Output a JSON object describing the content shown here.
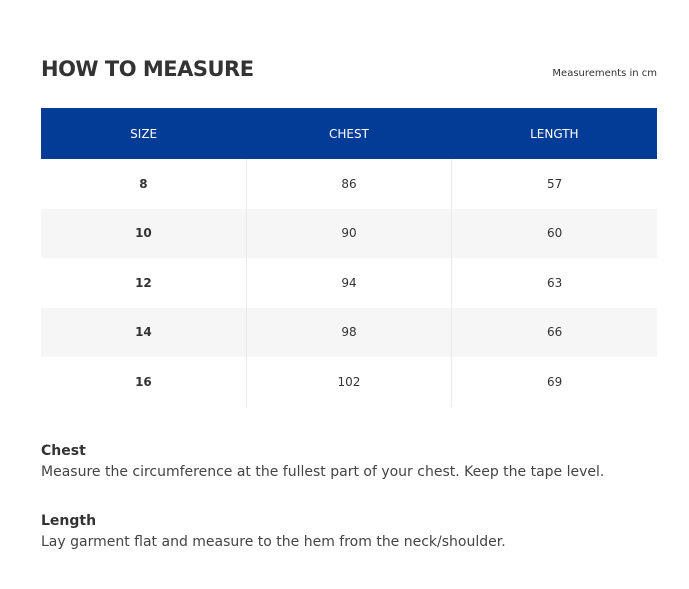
{
  "title": "HOW TO MEASURE",
  "unit_note": "Measurements in cm",
  "header_color": "#033c96",
  "table": {
    "headers": [
      "SIZE",
      "CHEST",
      "LENGTH"
    ],
    "rows": [
      [
        "8",
        "86",
        "57"
      ],
      [
        "10",
        "90",
        "60"
      ],
      [
        "12",
        "94",
        "63"
      ],
      [
        "14",
        "98",
        "66"
      ],
      [
        "16",
        "102",
        "69"
      ]
    ]
  },
  "guides": [
    {
      "heading": "Chest",
      "text": "Measure the circumference at the fullest part of your chest. Keep the tape level."
    },
    {
      "heading": "Length",
      "text": "Lay garment flat and measure to the hem from the neck/shoulder."
    }
  ]
}
